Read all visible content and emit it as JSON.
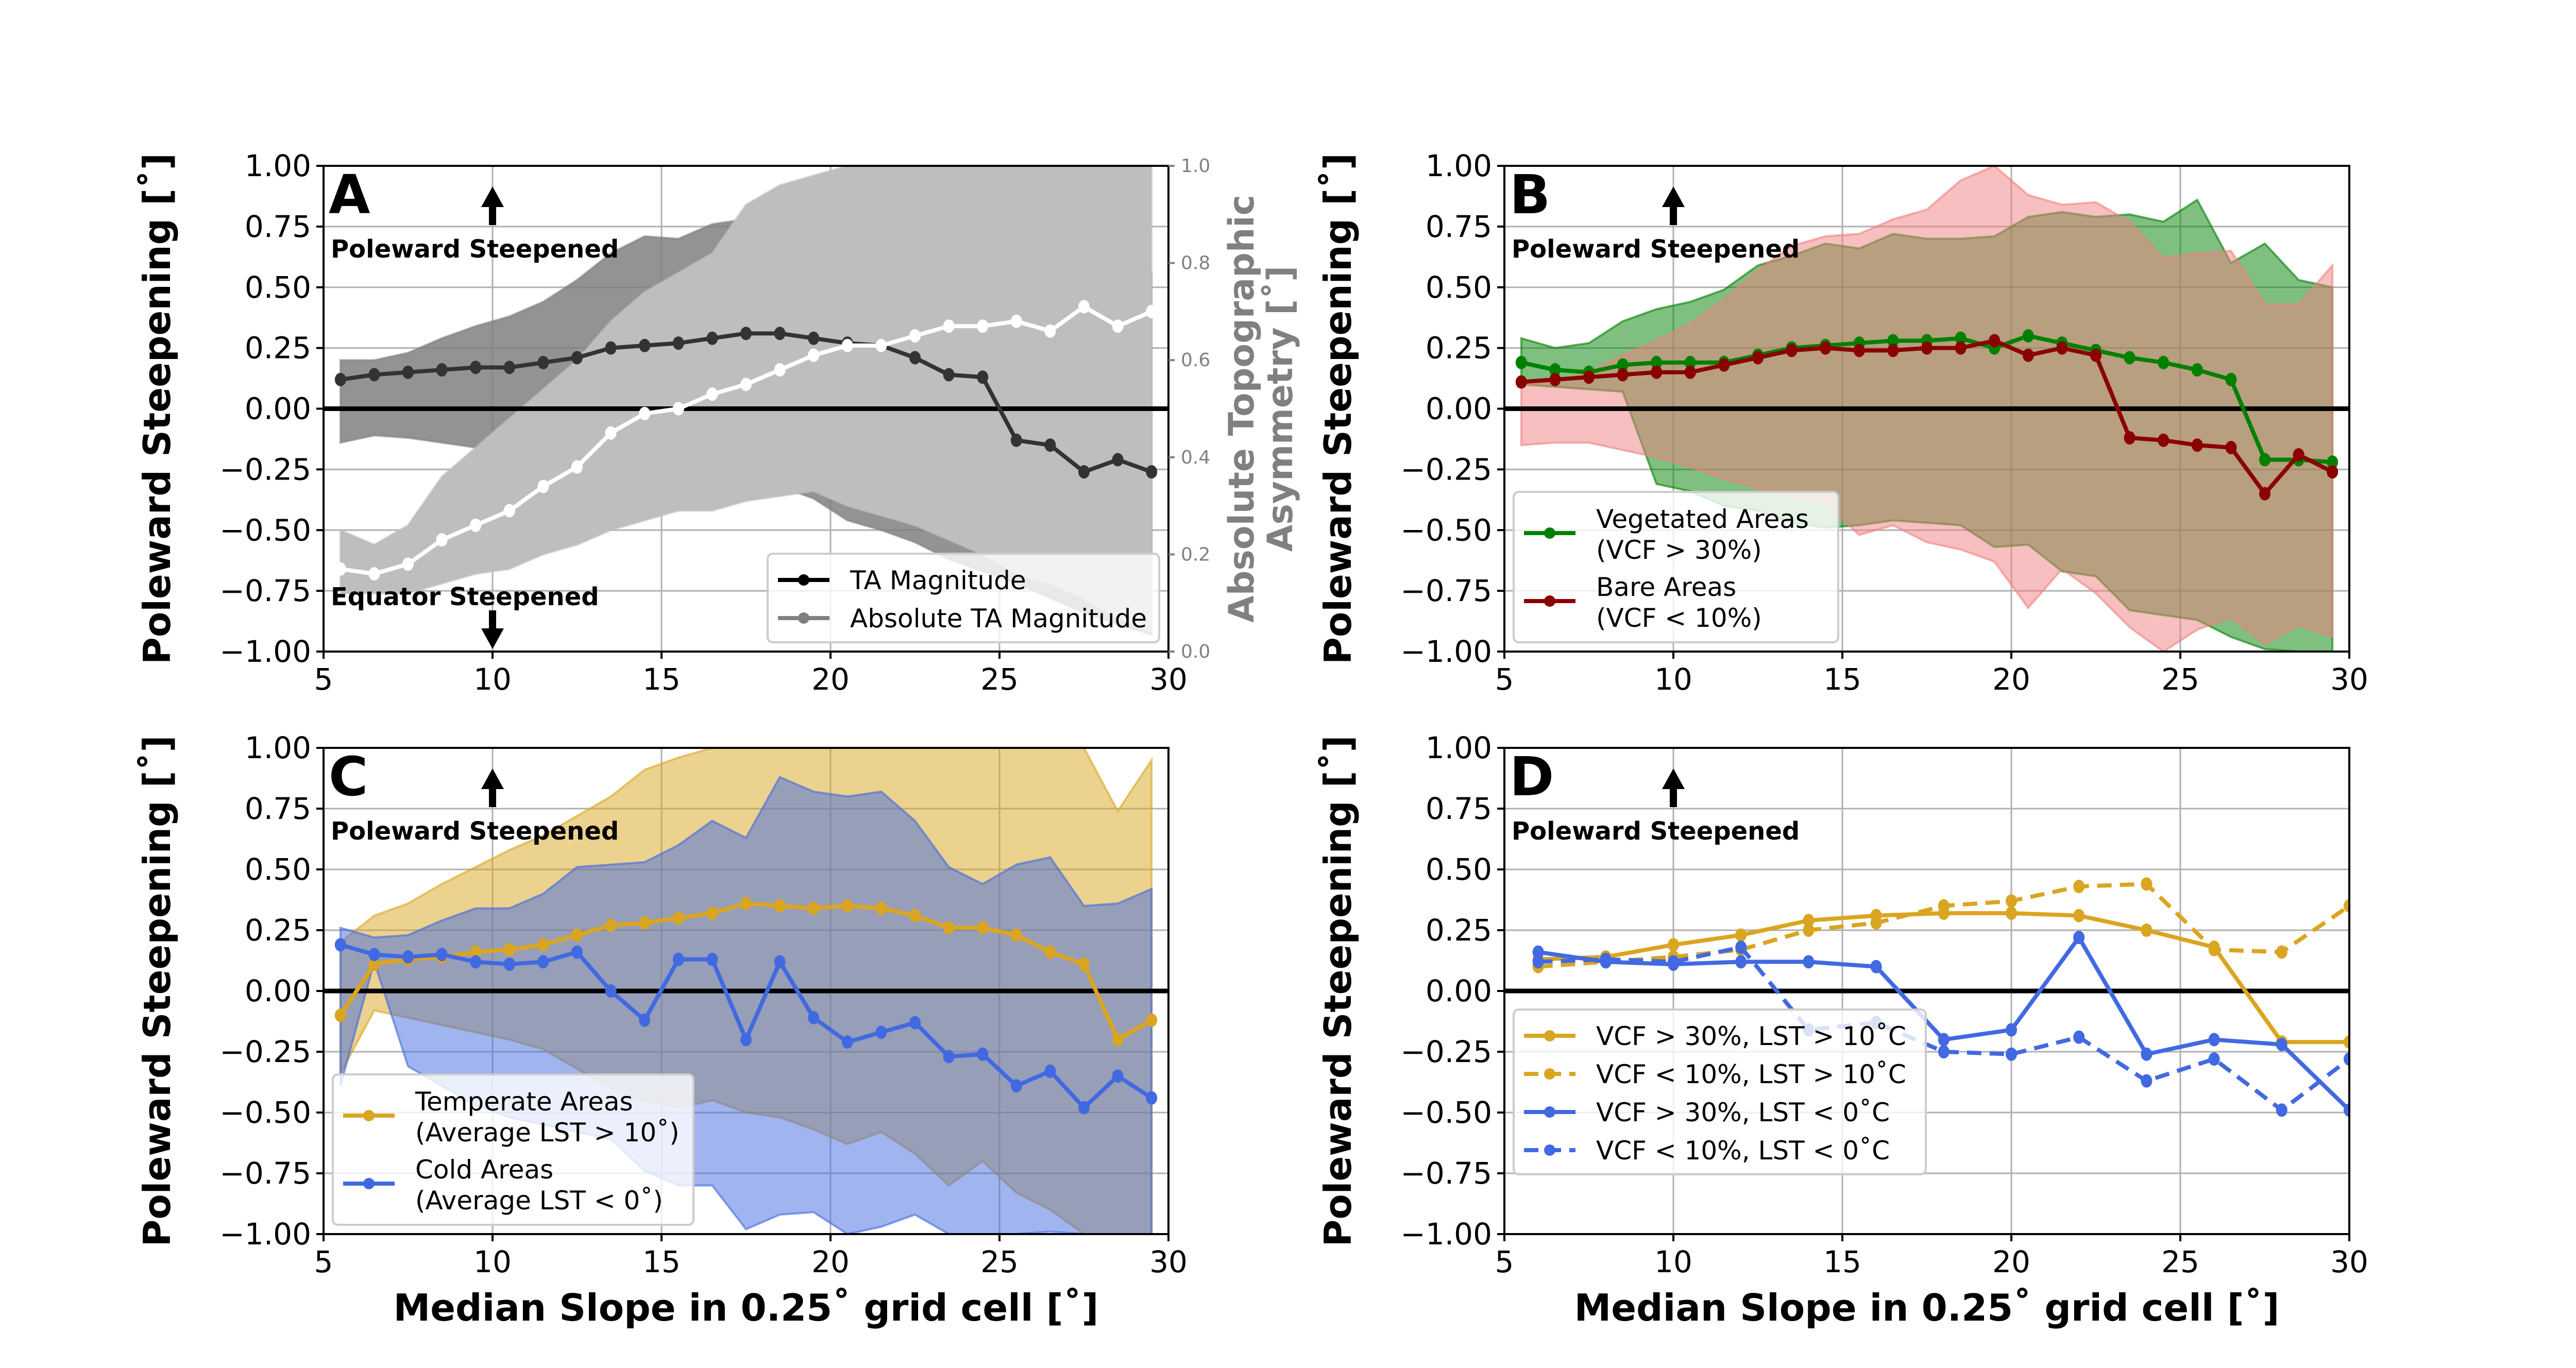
{
  "figure": {
    "ylabel": "Poleward Steepening [˚]",
    "xlabel": "Median Slope in 0.25˚ grid cell [˚]",
    "annotation_up": "Poleward Steepened",
    "annotation_down": "Equator Steepened"
  },
  "chart_data": [
    {
      "panel": "A",
      "type": "line",
      "xlim": [
        5,
        30
      ],
      "ylim": [
        -1.0,
        1.0
      ],
      "xticks": [
        "5",
        "10",
        "15",
        "20",
        "25",
        "30"
      ],
      "yticks": [
        "1.00",
        "0.75",
        "0.50",
        "0.25",
        "0.00",
        "−0.25",
        "−0.50",
        "−0.75",
        "−1.00"
      ],
      "ylabel": "Poleward Steepening [˚]",
      "grid": true,
      "legend_position": "lower-right",
      "annotations": [
        "Poleward Steepened",
        "Equator Steepened"
      ],
      "secondary_y": {
        "label": "Absolute Topographic Asymmetry [˚]",
        "ylim": [
          0.0,
          1.0
        ],
        "yticks": [
          "1.0",
          "0.8",
          "0.6",
          "0.4",
          "0.2",
          "0.0"
        ]
      },
      "x": [
        5.5,
        6.5,
        7.5,
        8.5,
        9.5,
        10.5,
        11.5,
        12.5,
        13.5,
        14.5,
        15.5,
        16.5,
        17.5,
        18.5,
        19.5,
        20.5,
        21.5,
        22.5,
        23.5,
        24.5,
        25.5,
        26.5,
        27.5,
        28.5,
        29.5
      ],
      "series": [
        {
          "name": "TA Magnitude",
          "axis": "left",
          "color": "#000000",
          "band_color": "#808080",
          "values": [
            0.12,
            0.14,
            0.15,
            0.16,
            0.17,
            0.17,
            0.19,
            0.21,
            0.25,
            0.26,
            0.27,
            0.29,
            0.31,
            0.31,
            0.29,
            0.27,
            0.26,
            0.21,
            0.14,
            0.13,
            -0.13,
            -0.15,
            -0.26,
            -0.21,
            -0.26
          ],
          "band_upper": [
            0.2,
            0.2,
            0.23,
            0.29,
            0.34,
            0.38,
            0.44,
            0.53,
            0.64,
            0.71,
            0.7,
            0.76,
            0.78,
            0.81,
            0.84,
            0.82,
            0.81,
            0.79,
            0.79,
            0.74,
            0.74,
            0.67,
            0.68,
            0.61,
            0.56
          ],
          "band_lower": [
            -0.14,
            -0.11,
            -0.12,
            -0.14,
            -0.16,
            -0.18,
            -0.21,
            -0.23,
            -0.24,
            -0.27,
            -0.3,
            -0.28,
            -0.3,
            -0.32,
            -0.37,
            -0.46,
            -0.5,
            -0.55,
            -0.62,
            -0.67,
            -0.72,
            -0.78,
            -0.84,
            -0.89,
            -0.93
          ]
        },
        {
          "name": "Absolute TA Magnitude",
          "axis": "right",
          "color": "#ffffff",
          "legend_color": "#808080",
          "band_color": "#bebebe",
          "values": [
            0.17,
            0.16,
            0.18,
            0.23,
            0.26,
            0.29,
            0.34,
            0.38,
            0.45,
            0.49,
            0.5,
            0.53,
            0.55,
            0.58,
            0.61,
            0.63,
            0.63,
            0.65,
            0.67,
            0.67,
            0.68,
            0.66,
            0.71,
            0.67,
            0.7
          ],
          "band_upper": [
            0.25,
            0.22,
            0.26,
            0.36,
            0.42,
            0.48,
            0.54,
            0.6,
            0.68,
            0.74,
            0.78,
            0.82,
            0.92,
            0.96,
            0.98,
            1.0,
            1.0,
            1.0,
            1.0,
            1.0,
            1.0,
            1.0,
            1.0,
            1.0,
            1.0
          ],
          "band_lower": [
            0.12,
            0.12,
            0.12,
            0.14,
            0.16,
            0.17,
            0.2,
            0.22,
            0.25,
            0.27,
            0.29,
            0.29,
            0.31,
            0.32,
            0.33,
            0.3,
            0.28,
            0.26,
            0.23,
            0.2,
            0.16,
            0.14,
            0.11,
            0.07,
            0.04
          ]
        }
      ]
    },
    {
      "panel": "B",
      "type": "line",
      "xlim": [
        5,
        30
      ],
      "ylim": [
        -1.0,
        1.0
      ],
      "xticks": [
        "5",
        "10",
        "15",
        "20",
        "25",
        "30"
      ],
      "yticks": [
        "1.00",
        "0.75",
        "0.50",
        "0.25",
        "0.00",
        "−0.25",
        "−0.50",
        "−0.75",
        "−1.00"
      ],
      "ylabel": "Poleward Steepening [˚]",
      "grid": true,
      "legend_position": "lower-left",
      "annotations": [
        "Poleward Steepened"
      ],
      "x": [
        5.5,
        6.5,
        7.5,
        8.5,
        9.5,
        10.5,
        11.5,
        12.5,
        13.5,
        14.5,
        15.5,
        16.5,
        17.5,
        18.5,
        19.5,
        20.5,
        21.5,
        22.5,
        23.5,
        24.5,
        25.5,
        26.5,
        27.5,
        28.5,
        29.5
      ],
      "series": [
        {
          "name": "Vegetated Areas\n(VCF > 30%)",
          "legend_lines": [
            "Vegetated Areas",
            "(VCF > 30%)"
          ],
          "color": "#008000",
          "band_color": "#008000",
          "values": [
            0.19,
            0.16,
            0.15,
            0.18,
            0.19,
            0.19,
            0.19,
            0.22,
            0.25,
            0.26,
            0.27,
            0.28,
            0.28,
            0.29,
            0.25,
            0.3,
            0.27,
            0.24,
            0.21,
            0.19,
            0.16,
            0.12,
            -0.21,
            -0.21,
            -0.22
          ],
          "band_upper": [
            0.29,
            0.25,
            0.27,
            0.36,
            0.41,
            0.44,
            0.49,
            0.59,
            0.63,
            0.68,
            0.66,
            0.72,
            0.7,
            0.7,
            0.71,
            0.79,
            0.81,
            0.79,
            0.8,
            0.77,
            0.86,
            0.6,
            0.68,
            0.53,
            0.5
          ],
          "band_lower": [
            0.1,
            0.09,
            0.08,
            0.07,
            -0.31,
            -0.34,
            -0.4,
            -0.42,
            -0.47,
            -0.49,
            -0.48,
            -0.46,
            -0.47,
            -0.48,
            -0.57,
            -0.56,
            -0.67,
            -0.69,
            -0.83,
            -0.85,
            -0.87,
            -0.94,
            -0.99,
            -1.0,
            -1.0
          ]
        },
        {
          "name": "Bare Areas\n(VCF < 10%)",
          "legend_lines": [
            "Bare Areas",
            "(VCF < 10%)"
          ],
          "color": "#8b0000",
          "band_color": "#f08080",
          "values": [
            0.11,
            0.12,
            0.13,
            0.14,
            0.15,
            0.15,
            0.18,
            0.21,
            0.24,
            0.25,
            0.24,
            0.24,
            0.25,
            0.25,
            0.28,
            0.22,
            0.25,
            0.22,
            -0.12,
            -0.13,
            -0.15,
            -0.16,
            -0.35,
            -0.19,
            -0.26
          ],
          "band_upper": [
            0.1,
            0.11,
            0.15,
            0.22,
            0.28,
            0.35,
            0.45,
            0.57,
            0.67,
            0.71,
            0.72,
            0.78,
            0.82,
            0.94,
            1.0,
            0.88,
            0.84,
            0.85,
            0.77,
            0.62,
            0.64,
            0.65,
            0.43,
            0.43,
            0.59
          ],
          "band_lower": [
            -0.15,
            -0.14,
            -0.14,
            -0.17,
            -0.2,
            -0.24,
            -0.29,
            -0.33,
            -0.36,
            -0.39,
            -0.52,
            -0.48,
            -0.55,
            -0.58,
            -0.63,
            -0.82,
            -0.66,
            -0.76,
            -0.9,
            -1.0,
            -0.91,
            -0.86,
            -0.97,
            -0.89,
            -0.94
          ]
        }
      ]
    },
    {
      "panel": "C",
      "type": "line",
      "xlim": [
        5,
        30
      ],
      "ylim": [
        -1.0,
        1.0
      ],
      "xticks": [
        "5",
        "10",
        "15",
        "20",
        "25",
        "30"
      ],
      "yticks": [
        "1.00",
        "0.75",
        "0.50",
        "0.25",
        "0.00",
        "−0.25",
        "−0.50",
        "−0.75",
        "−1.00"
      ],
      "xlabel": "Median Slope in 0.25˚ grid cell [˚]",
      "ylabel": "Poleward Steepening [˚]",
      "grid": true,
      "legend_position": "lower-left",
      "annotations": [
        "Poleward Steepened"
      ],
      "x": [
        5.5,
        6.5,
        7.5,
        8.5,
        9.5,
        10.5,
        11.5,
        12.5,
        13.5,
        14.5,
        15.5,
        16.5,
        17.5,
        18.5,
        19.5,
        20.5,
        21.5,
        22.5,
        23.5,
        24.5,
        25.5,
        26.5,
        27.5,
        28.5,
        29.5
      ],
      "series": [
        {
          "name": "Temperate Areas\n(Average LST > 10˚)",
          "legend_lines": [
            "Temperate Areas",
            "(Average LST > 10˚)"
          ],
          "color": "#daa520",
          "band_color": "#daa520",
          "values": [
            -0.1,
            0.11,
            0.13,
            0.14,
            0.16,
            0.17,
            0.19,
            0.23,
            0.27,
            0.28,
            0.3,
            0.32,
            0.36,
            0.35,
            0.34,
            0.35,
            0.34,
            0.31,
            0.26,
            0.26,
            0.23,
            0.16,
            0.11,
            -0.2,
            -0.12
          ],
          "band_upper": [
            0.2,
            0.31,
            0.36,
            0.44,
            0.51,
            0.58,
            0.64,
            0.72,
            0.8,
            0.91,
            0.96,
            1.0,
            1.0,
            1.0,
            1.0,
            1.0,
            1.0,
            1.0,
            1.0,
            1.0,
            1.0,
            1.0,
            1.0,
            0.74,
            0.95
          ],
          "band_lower": [
            -0.34,
            -0.08,
            -0.11,
            -0.14,
            -0.17,
            -0.2,
            -0.24,
            -0.32,
            -0.4,
            -0.45,
            -0.48,
            -0.45,
            -0.5,
            -0.52,
            -0.57,
            -0.63,
            -0.58,
            -0.67,
            -0.8,
            -0.7,
            -0.83,
            -0.9,
            -1.0,
            -1.0,
            -1.0
          ]
        },
        {
          "name": "Cold Areas\n(Average LST < 0˚)",
          "legend_lines": [
            "Cold Areas",
            "(Average LST < 0˚)"
          ],
          "color": "#4169e1",
          "band_color": "#4169e1",
          "values": [
            0.19,
            0.15,
            0.14,
            0.15,
            0.12,
            0.11,
            0.12,
            0.16,
            0.0,
            -0.12,
            0.13,
            0.13,
            -0.2,
            0.12,
            -0.11,
            -0.21,
            -0.17,
            -0.13,
            -0.27,
            -0.26,
            -0.39,
            -0.33,
            -0.48,
            -0.35,
            -0.44
          ],
          "band_upper": [
            0.26,
            0.22,
            0.23,
            0.29,
            0.34,
            0.34,
            0.4,
            0.51,
            0.52,
            0.53,
            0.6,
            0.7,
            0.63,
            0.88,
            0.82,
            0.8,
            0.82,
            0.7,
            0.51,
            0.44,
            0.52,
            0.55,
            0.35,
            0.36,
            0.42
          ],
          "band_lower": [
            -0.39,
            0.12,
            -0.31,
            -0.39,
            -0.47,
            -0.52,
            -0.55,
            -0.58,
            -0.61,
            -0.74,
            -0.8,
            -0.8,
            -0.98,
            -0.92,
            -0.91,
            -1.0,
            -0.97,
            -0.92,
            -1.0,
            -1.0,
            -1.0,
            -0.99,
            -1.0,
            -1.0,
            -1.0
          ]
        }
      ]
    },
    {
      "panel": "D",
      "type": "line",
      "xlim": [
        5,
        30
      ],
      "ylim": [
        -1.0,
        1.0
      ],
      "xticks": [
        "5",
        "10",
        "15",
        "20",
        "25",
        "30"
      ],
      "yticks": [
        "1.00",
        "0.75",
        "0.50",
        "0.25",
        "0.00",
        "−0.25",
        "−0.50",
        "−0.75",
        "−1.00"
      ],
      "xlabel": "Median Slope in 0.25˚ grid cell [˚]",
      "ylabel": "Poleward Steepening [˚]",
      "grid": true,
      "legend_position": "lower-left",
      "annotations": [
        "Poleward Steepened"
      ],
      "x": [
        6,
        8,
        10,
        12,
        14,
        16,
        18,
        20,
        22,
        24,
        26,
        28,
        30
      ],
      "series": [
        {
          "name": "VCF > 30%, LST > 10˚C",
          "color": "#daa520",
          "dash": "solid",
          "values": [
            0.13,
            0.14,
            0.19,
            0.23,
            0.29,
            0.31,
            0.32,
            0.32,
            0.31,
            0.25,
            0.18,
            -0.21,
            -0.21
          ]
        },
        {
          "name": "VCF < 10%, LST > 10˚C",
          "color": "#daa520",
          "dash": "dashed",
          "values": [
            0.1,
            0.12,
            0.14,
            0.17,
            0.25,
            0.28,
            0.35,
            0.37,
            0.43,
            0.44,
            0.17,
            0.16,
            0.35
          ]
        },
        {
          "name": "VCF > 30%, LST < 0˚C",
          "color": "#4169e1",
          "dash": "solid",
          "values": [
            0.16,
            0.12,
            0.11,
            0.12,
            0.12,
            0.1,
            -0.2,
            -0.16,
            0.22,
            -0.26,
            -0.2,
            -0.22,
            -0.49
          ]
        },
        {
          "name": "VCF < 10%, LST < 0˚C",
          "color": "#4169e1",
          "dash": "dashed",
          "values": [
            0.12,
            0.13,
            0.12,
            0.18,
            -0.16,
            -0.13,
            -0.25,
            -0.26,
            -0.19,
            -0.37,
            -0.28,
            -0.49,
            -0.28
          ]
        }
      ]
    }
  ]
}
